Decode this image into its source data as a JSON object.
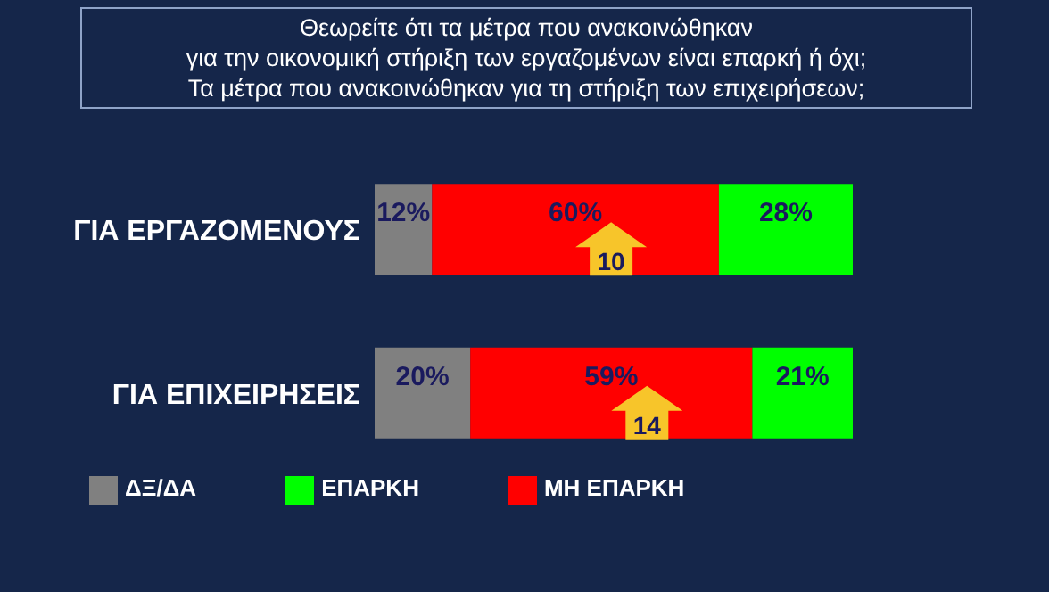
{
  "chart_data": {
    "type": "bar",
    "orientation": "horizontal",
    "stacked": true,
    "title": "Θεωρείτε ότι τα μέτρα που ανακοινώθηκαν\nγια την οικονομική στήριξη των εργαζομένων είναι επαρκή ή όχι;\nΤα μέτρα που ανακοινώθηκαν για τη στήριξη των επιχειρήσεων;",
    "categories": [
      "ΓΙΑ ΕΡΓΑΖΟΜΕΝΟΥΣ",
      "ΓΙΑ ΕΠΙΧΕΙΡΗΣΕΙΣ"
    ],
    "series": [
      {
        "name": "ΔΞ/ΔΑ",
        "color": "#808080",
        "values": [
          12,
          20
        ],
        "value_labels": [
          "12%",
          "20%"
        ]
      },
      {
        "name": "ΜΗ ΕΠΑΡΚΗ",
        "color": "#ff0000",
        "values": [
          60,
          59
        ],
        "value_labels": [
          "60%",
          "59%"
        ]
      },
      {
        "name": "ΕΠΑΡΚΗ",
        "color": "#00ff00",
        "values": [
          28,
          21
        ],
        "value_labels": [
          "28%",
          "21%"
        ]
      }
    ],
    "annotations": [
      "10",
      "14"
    ],
    "legend": "bottom left",
    "grid": false,
    "tick_labels": "y"
  }
}
